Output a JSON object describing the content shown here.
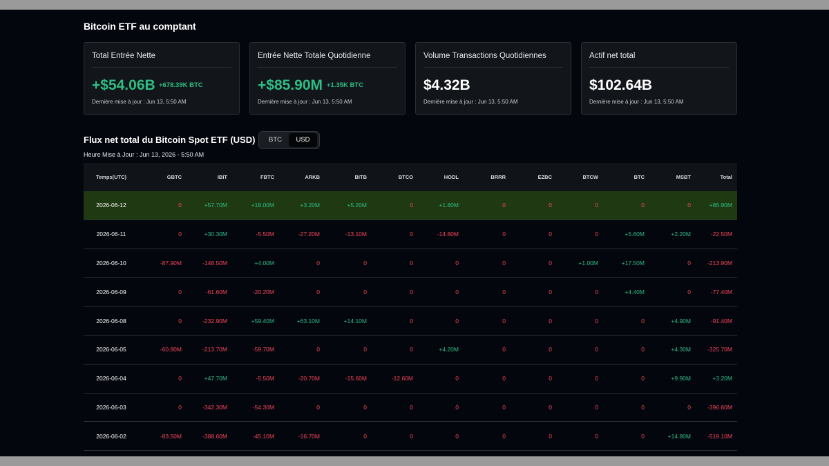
{
  "section_title": "Bitcoin ETF au comptant",
  "cards": [
    {
      "title": "Total Entrée Nette",
      "value": "+$54.06B",
      "value_color": "#2ebd85",
      "sub": "+678.39K BTC",
      "updated": "Dernière mise à jour : Jun 13, 5:50 AM"
    },
    {
      "title": "Entrée Nette Totale Quotidienne",
      "value": "+$85.90M",
      "value_color": "#2ebd85",
      "sub": "+1.35K BTC",
      "updated": "Dernière mise à jour : Jun 13, 5:50 AM"
    },
    {
      "title": "Volume Transactions Quotidiennes",
      "value": "$4.32B",
      "value_color": "#ffffff",
      "sub": "",
      "updated": "Dernière mise à jour : Jun 13, 5:50 AM"
    },
    {
      "title": "Actif net total",
      "value": "$102.64B",
      "value_color": "#ffffff",
      "sub": "",
      "updated": "Dernière mise à jour : Jun 13, 5:50 AM"
    }
  ],
  "flux": {
    "title": "Flux net total du Bitcoin Spot ETF (USD)",
    "toggle": {
      "options": [
        "BTC",
        "USD"
      ],
      "selected": "USD"
    },
    "updated": "Heure Mise à Jour : Jun 13, 2026 - 5:50 AM"
  },
  "colors": {
    "positive": "#2ebd85",
    "negative": "#f6465d",
    "highlight_row": "#1f3a12"
  },
  "table": {
    "columns": [
      "Temps(UTC)",
      "GBTC",
      "IBIT",
      "FBTC",
      "ARKB",
      "BITB",
      "BTCO",
      "HODL",
      "BRRR",
      "EZBC",
      "BTCW",
      "BTC",
      "MSBT",
      "Total"
    ],
    "rows": [
      {
        "highlight": true,
        "cells": [
          "2026-06-12",
          "0",
          "+57.70M",
          "+18.00M",
          "+3.20M",
          "+5.20M",
          "0",
          "+1.80M",
          "0",
          "0",
          "0",
          "0",
          "0",
          "+85.90M"
        ]
      },
      {
        "highlight": false,
        "cells": [
          "2026-06-11",
          "0",
          "+30.30M",
          "-5.50M",
          "-27.20M",
          "-13.10M",
          "0",
          "-14.80M",
          "0",
          "0",
          "0",
          "+5.60M",
          "+2.20M",
          "-22.50M"
        ]
      },
      {
        "highlight": false,
        "cells": [
          "2026-06-10",
          "-87.90M",
          "-148.50M",
          "+4.00M",
          "0",
          "0",
          "0",
          "0",
          "0",
          "0",
          "+1.00M",
          "+17.50M",
          "0",
          "-213.90M"
        ]
      },
      {
        "highlight": false,
        "cells": [
          "2026-06-09",
          "0",
          "-61.60M",
          "-20.20M",
          "0",
          "0",
          "0",
          "0",
          "0",
          "0",
          "0",
          "+4.40M",
          "0",
          "-77.40M"
        ]
      },
      {
        "highlight": false,
        "cells": [
          "2026-06-08",
          "0",
          "-232.90M",
          "+59.40M",
          "+63.10M",
          "+14.10M",
          "0",
          "0",
          "0",
          "0",
          "0",
          "0",
          "+4.90M",
          "-91.40M"
        ]
      },
      {
        "highlight": false,
        "cells": [
          "2026-06-05",
          "-60.80M",
          "-213.70M",
          "-59.70M",
          "0",
          "0",
          "0",
          "+4.20M",
          "0",
          "0",
          "0",
          "0",
          "+4.30M",
          "-325.70M"
        ]
      },
      {
        "highlight": false,
        "cells": [
          "2026-06-04",
          "0",
          "+47.70M",
          "-5.50M",
          "-20.70M",
          "-15.60M",
          "-12.60M",
          "0",
          "0",
          "0",
          "0",
          "0",
          "+9.90M",
          "+3.20M"
        ]
      },
      {
        "highlight": false,
        "cells": [
          "2026-06-03",
          "0",
          "-342.30M",
          "-54.30M",
          "0",
          "0",
          "0",
          "0",
          "0",
          "0",
          "0",
          "0",
          "0",
          "-396.60M"
        ]
      },
      {
        "highlight": false,
        "cells": [
          "2026-06-02",
          "-83.50M",
          "-388.60M",
          "-45.10M",
          "-16.70M",
          "0",
          "0",
          "0",
          "0",
          "0",
          "0",
          "0",
          "+14.80M",
          "-519.10M"
        ]
      }
    ]
  }
}
